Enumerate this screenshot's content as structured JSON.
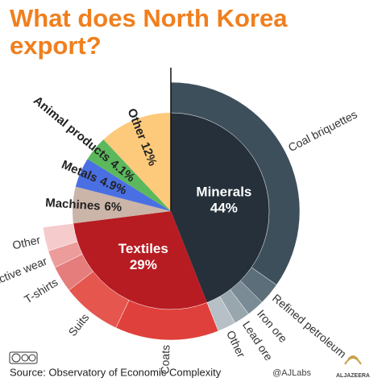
{
  "chart_data": {
    "type": "pie",
    "title": "What does North Korea export?",
    "categories": [
      "Minerals",
      "Textiles",
      "Machines",
      "Metals",
      "Animal products",
      "Other"
    ],
    "values": [
      44,
      29,
      6,
      4.9,
      4.1,
      12
    ],
    "value_labels": [
      "44%",
      "29%",
      "6%",
      "4.9%",
      "4.1%",
      "12%"
    ],
    "colors": [
      "#25303a",
      "#b71c22",
      "#cbb5a8",
      "#4a6fe3",
      "#5cb85c",
      "#fdc97b"
    ],
    "children": [
      {
        "categories": [
          "Coal briquettes",
          "Refined petroleum",
          "Iron ore",
          "Lead ore",
          "Other"
        ],
        "values": [
          34.7,
          2.8,
          2.2,
          2,
          2.3
        ],
        "colors": [
          "#3e4f5c",
          "#5c6e7a",
          "#7b8b96",
          "#98a6ae",
          "#b6c0c6"
        ]
      },
      {
        "categories": [
          "Coats",
          "Suits",
          "T-shirts",
          "Active wear",
          "Other"
        ],
        "values": [
          13,
          7.5,
          3.3,
          2.2,
          3
        ],
        "colors": [
          "#e0403b",
          "#e5564f",
          "#e47d7b",
          "#ec9c9b",
          "#f6cbcb"
        ]
      },
      null,
      null,
      null,
      null
    ]
  },
  "source": "Source: Observatory of Economic Complexity",
  "credit": "@AJLabs",
  "logo": "ALJAZEERA"
}
